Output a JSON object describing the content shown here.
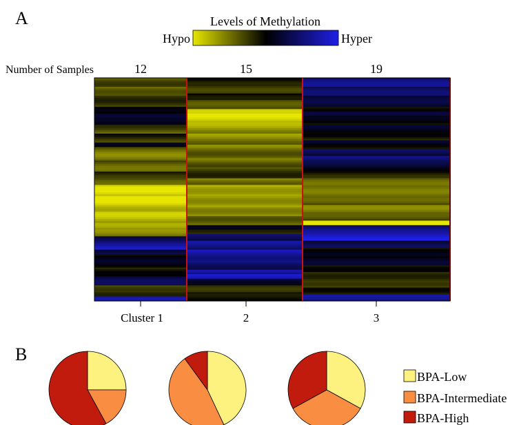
{
  "panel_labels": {
    "a": "A",
    "b": "B"
  },
  "colors": {
    "hypo": "#e6e600",
    "neutral": "#000000",
    "hyper": "#1f1fe6",
    "divider": "#cc1111",
    "bpa_low": "#fdf27f",
    "bpa_intermediate": "#f98e43",
    "bpa_high": "#c01b0c"
  },
  "chart_data": [
    {
      "type": "heatmap",
      "title": "Levels of Methylation",
      "legend": {
        "low_label": "Hypo",
        "high_label": "Hyper",
        "scale": [
          -1,
          1
        ]
      },
      "samples_label": "Number of Samples",
      "clusters": [
        {
          "label": "Cluster 1",
          "n_samples": "12",
          "bands": [
            [
              0.0,
              0.4
            ],
            [
              0.04,
              0.5
            ],
            [
              0.08,
              0.3
            ],
            [
              0.13,
              0.1
            ],
            [
              0.16,
              -0.05
            ],
            [
              0.18,
              0.0
            ],
            [
              0.21,
              0.35
            ],
            [
              0.25,
              0.2
            ],
            [
              0.29,
              -0.05
            ],
            [
              0.31,
              0.45
            ],
            [
              0.37,
              0.35
            ],
            [
              0.42,
              0.1
            ],
            [
              0.45,
              0.3
            ],
            [
              0.48,
              0.85
            ],
            [
              0.53,
              0.9
            ],
            [
              0.6,
              0.75
            ],
            [
              0.65,
              0.6
            ],
            [
              0.68,
              0.5
            ],
            [
              0.71,
              -0.45
            ],
            [
              0.74,
              -0.8
            ],
            [
              0.77,
              -0.3
            ],
            [
              0.79,
              0.0
            ],
            [
              0.85,
              0.15
            ],
            [
              0.89,
              -0.25
            ],
            [
              0.93,
              0.4
            ],
            [
              0.96,
              0.3
            ],
            [
              0.98,
              -0.6
            ]
          ]
        },
        {
          "label": "2",
          "n_samples": "15",
          "bands": [
            [
              0.0,
              0.0
            ],
            [
              0.03,
              0.15
            ],
            [
              0.07,
              -0.05
            ],
            [
              0.1,
              0.25
            ],
            [
              0.14,
              0.75
            ],
            [
              0.16,
              0.85
            ],
            [
              0.2,
              0.65
            ],
            [
              0.25,
              0.55
            ],
            [
              0.3,
              0.5
            ],
            [
              0.36,
              0.45
            ],
            [
              0.4,
              0.3
            ],
            [
              0.45,
              0.55
            ],
            [
              0.48,
              0.8
            ],
            [
              0.53,
              0.75
            ],
            [
              0.58,
              0.7
            ],
            [
              0.62,
              0.5
            ],
            [
              0.66,
              0.05
            ],
            [
              0.68,
              0.3
            ],
            [
              0.7,
              -0.3
            ],
            [
              0.73,
              -0.6
            ],
            [
              0.77,
              -0.7
            ],
            [
              0.82,
              -0.5
            ],
            [
              0.86,
              -0.75
            ],
            [
              0.88,
              -0.95
            ],
            [
              0.9,
              -0.3
            ],
            [
              0.93,
              0.1
            ],
            [
              0.96,
              -0.05
            ]
          ]
        },
        {
          "label": "3",
          "n_samples": "19",
          "bands": [
            [
              0.0,
              -0.5
            ],
            [
              0.04,
              -0.35
            ],
            [
              0.08,
              -0.15
            ],
            [
              0.13,
              0.2
            ],
            [
              0.15,
              -0.1
            ],
            [
              0.17,
              0.05
            ],
            [
              0.21,
              -0.05
            ],
            [
              0.25,
              0.15
            ],
            [
              0.28,
              -0.05
            ],
            [
              0.32,
              -0.35
            ],
            [
              0.35,
              -0.5
            ],
            [
              0.39,
              -0.2
            ],
            [
              0.42,
              0.05
            ],
            [
              0.45,
              0.35
            ],
            [
              0.49,
              0.4
            ],
            [
              0.53,
              0.3
            ],
            [
              0.57,
              0.45
            ],
            [
              0.61,
              0.25
            ],
            [
              0.64,
              0.95
            ],
            [
              0.66,
              -0.6
            ],
            [
              0.69,
              -0.85
            ],
            [
              0.73,
              -0.3
            ],
            [
              0.76,
              0.05
            ],
            [
              0.8,
              -0.05
            ],
            [
              0.84,
              0.15
            ],
            [
              0.87,
              0.3
            ],
            [
              0.91,
              0.4
            ],
            [
              0.94,
              0.2
            ],
            [
              0.97,
              -0.55
            ]
          ]
        }
      ]
    },
    {
      "type": "pie",
      "categories": [
        "BPA-Low",
        "BPA-Intermediate",
        "BPA-High"
      ],
      "pies": [
        {
          "cluster": "Cluster 1",
          "values": [
            25,
            17,
            58
          ]
        },
        {
          "cluster": "2",
          "values": [
            43,
            47,
            10
          ]
        },
        {
          "cluster": "3",
          "values": [
            33,
            34,
            33
          ]
        }
      ]
    }
  ]
}
